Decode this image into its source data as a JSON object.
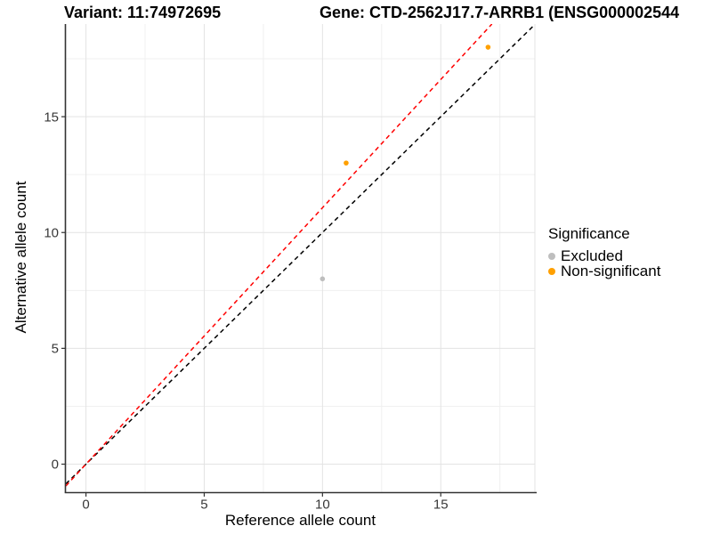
{
  "titles": {
    "variant": "Variant: 11:74972695",
    "gene": "Gene: CTD-2562J17.7-ARRB1 (ENSG000002544"
  },
  "axes": {
    "x_label": "Reference allele count",
    "y_label": "Alternative allele count"
  },
  "legend": {
    "title": "Significance",
    "items": [
      {
        "label": "Excluded",
        "color": "#bebebe"
      },
      {
        "label": "Non-significant",
        "color": "#ffa000"
      }
    ]
  },
  "chart_data": {
    "type": "scatter",
    "title": "Variant: 11:74972695   Gene: CTD-2562J17.7-ARRB1 (ENSG000002544",
    "xlabel": "Reference allele count",
    "ylabel": "Alternative allele count",
    "xlim": [
      -0.85,
      18.98
    ],
    "ylim": [
      -1.19,
      19.0
    ],
    "x_major_ticks": [
      0,
      5,
      10,
      15
    ],
    "x_minor_ticks": [
      2.5,
      7.5,
      12.5,
      17.5
    ],
    "y_major_ticks": [
      0,
      5,
      10,
      15
    ],
    "y_minor_ticks": [
      2.5,
      7.5,
      12.5,
      17.5
    ],
    "grid": true,
    "legend_position": "right",
    "series": [
      {
        "name": "Excluded",
        "color": "#bebebe",
        "points": [
          {
            "x": 10,
            "y": 8
          }
        ]
      },
      {
        "name": "Non-significant",
        "color": "#ffa000",
        "points": [
          {
            "x": 11,
            "y": 13
          },
          {
            "x": 17,
            "y": 18
          }
        ]
      }
    ],
    "lines": [
      {
        "name": "identity-line",
        "slope": 1.0,
        "intercept": 0,
        "color": "#000000",
        "dash": "5 4"
      },
      {
        "name": "fitted-ratio-line",
        "slope": 1.107,
        "intercept": 0,
        "color": "#ff0000",
        "dash": "5 4"
      }
    ],
    "style": {
      "major_grid_color": "#e3e3e3",
      "minor_grid_color": "#f0f0f0",
      "axis_line_color": "#333333",
      "tick_label_color": "#383838",
      "tick_label_size": 15
    }
  }
}
